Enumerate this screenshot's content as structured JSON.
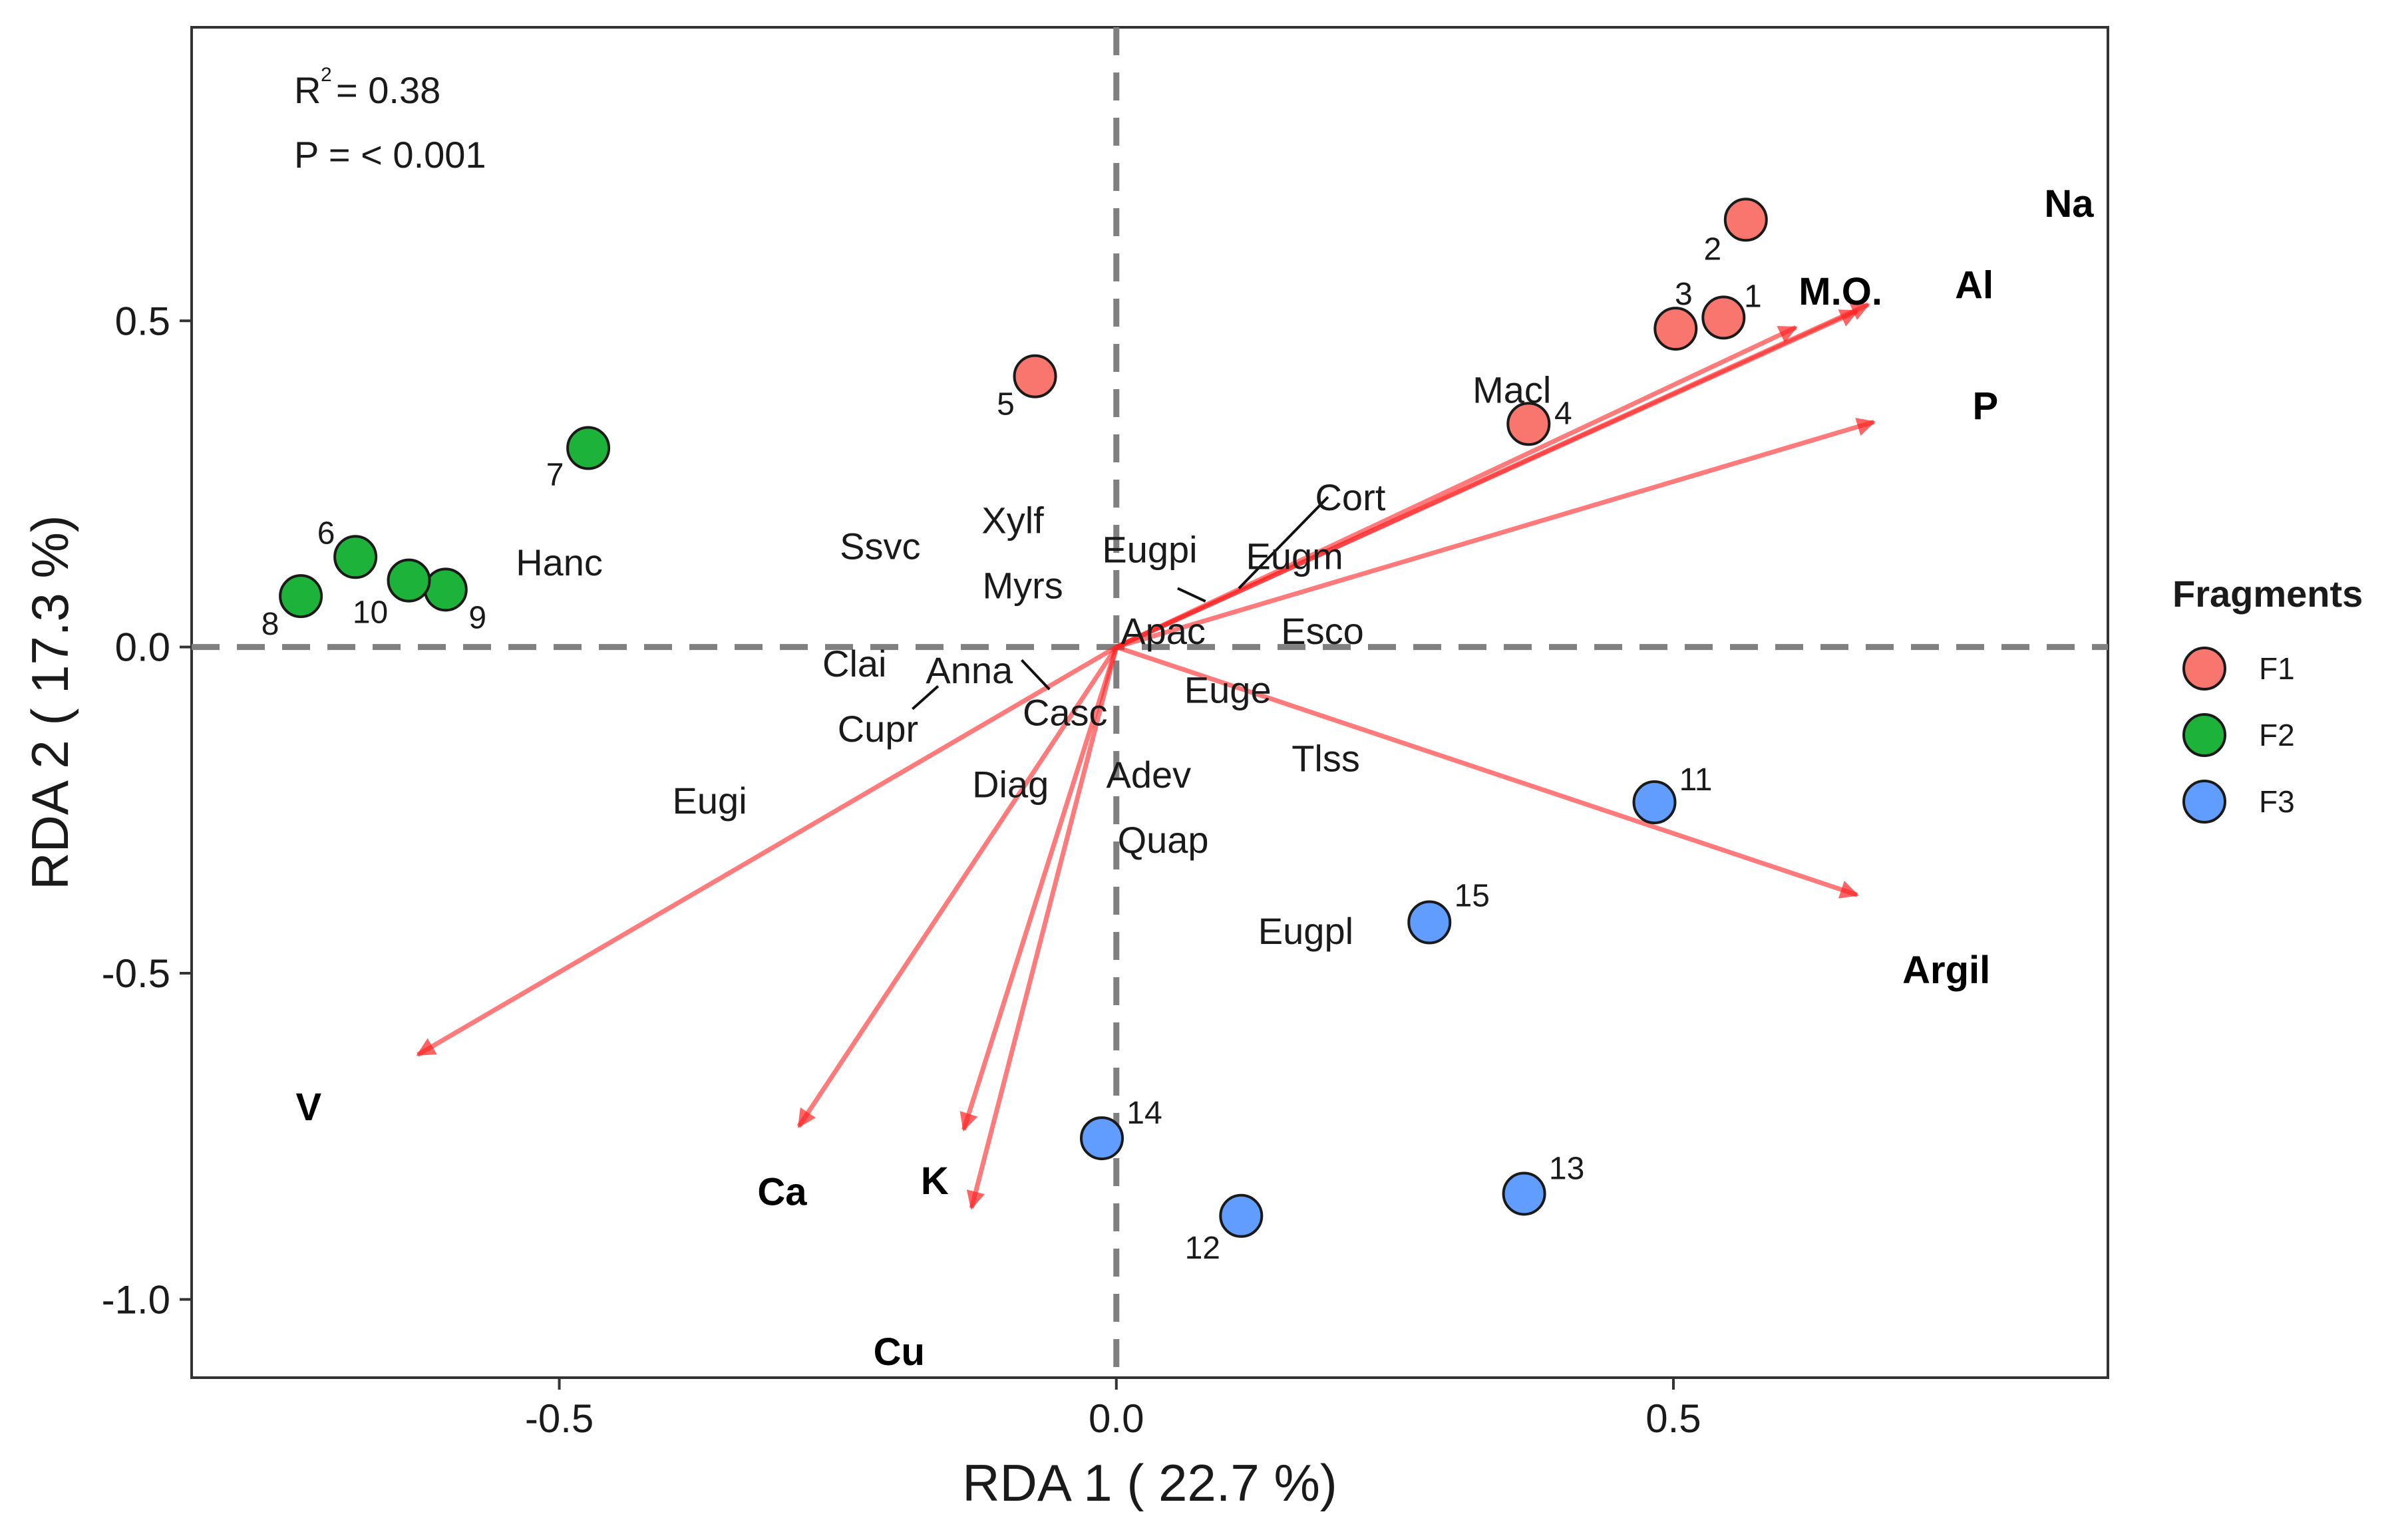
{
  "chart_data": {
    "type": "scatter",
    "subtype": "RDA biplot",
    "xlabel": "RDA 1 ( 22.7 %)",
    "ylabel": "RDA 2 ( 17.3 %)",
    "xlim": [
      -0.83,
      0.89
    ],
    "ylim": [
      -1.12,
      0.95
    ],
    "x_ticks": [
      -0.5,
      0.0,
      0.5
    ],
    "x_tick_labels": [
      "-0.5",
      "0.0",
      "0.5"
    ],
    "y_ticks": [
      -1.0,
      -0.5,
      0.0,
      0.5
    ],
    "y_tick_labels": [
      "-1.0",
      "-0.5",
      "0.0",
      "0.5"
    ],
    "reference_lines": {
      "x": 0,
      "y": 0,
      "style": "dashed",
      "color": "#808080"
    },
    "stats": {
      "r2": "= 0.38",
      "p": "P = < 0.001"
    },
    "legend": {
      "title": "Fragments",
      "position": "right",
      "entries": [
        {
          "name": "F1",
          "color": "#F8766D"
        },
        {
          "name": "F2",
          "color": "#1DB33A"
        },
        {
          "name": "F3",
          "color": "#619CFF"
        }
      ]
    },
    "sites": [
      {
        "label": "1",
        "fragment": "F1",
        "x": 0.545,
        "y": 0.505
      },
      {
        "label": "2",
        "fragment": "F1",
        "x": 0.565,
        "y": 0.655
      },
      {
        "label": "3",
        "fragment": "F1",
        "x": 0.502,
        "y": 0.488
      },
      {
        "label": "4",
        "fragment": "F1",
        "x": 0.37,
        "y": 0.342
      },
      {
        "label": "5",
        "fragment": "F1",
        "x": -0.073,
        "y": 0.415
      },
      {
        "label": "6",
        "fragment": "F2",
        "x": -0.683,
        "y": 0.138
      },
      {
        "label": "7",
        "fragment": "F2",
        "x": -0.474,
        "y": 0.305
      },
      {
        "label": "8",
        "fragment": "F2",
        "x": -0.732,
        "y": 0.078
      },
      {
        "label": "9",
        "fragment": "F2",
        "x": -0.602,
        "y": 0.088
      },
      {
        "label": "10",
        "fragment": "F2",
        "x": -0.635,
        "y": 0.102
      },
      {
        "label": "11",
        "fragment": "F3",
        "x": 0.483,
        "y": -0.238
      },
      {
        "label": "12",
        "fragment": "F3",
        "x": 0.112,
        "y": -0.872
      },
      {
        "label": "13",
        "fragment": "F3",
        "x": 0.366,
        "y": -0.838
      },
      {
        "label": "14",
        "fragment": "F3",
        "x": -0.013,
        "y": -0.753
      },
      {
        "label": "15",
        "fragment": "F3",
        "x": 0.281,
        "y": -0.422
      }
    ],
    "env_vectors": [
      {
        "name": "Na",
        "x": 0.675,
        "y": 0.525
      },
      {
        "name": "Al",
        "x": 0.665,
        "y": 0.515
      },
      {
        "name": "M.O.",
        "x": 0.61,
        "y": 0.49
      },
      {
        "name": "P",
        "x": 0.68,
        "y": 0.345
      },
      {
        "name": "Argil",
        "x": 0.665,
        "y": -0.38
      },
      {
        "name": "V",
        "x": -0.627,
        "y": -0.625
      },
      {
        "name": "Ca",
        "x": -0.285,
        "y": -0.735
      },
      {
        "name": "K",
        "x": -0.137,
        "y": -0.74
      },
      {
        "name": "Cu",
        "x": -0.13,
        "y": -0.86
      }
    ],
    "env_labels": [
      {
        "name": "Na",
        "x": 0.855,
        "y": 0.68
      },
      {
        "name": "Al",
        "x": 0.77,
        "y": 0.555
      },
      {
        "name": "M.O.",
        "x": 0.65,
        "y": 0.545
      },
      {
        "name": "P",
        "x": 0.78,
        "y": 0.37
      },
      {
        "name": "Argil",
        "x": 0.745,
        "y": -0.495
      },
      {
        "name": "V",
        "x": -0.725,
        "y": -0.705
      },
      {
        "name": "Ca",
        "x": -0.3,
        "y": -0.835
      },
      {
        "name": "K",
        "x": -0.163,
        "y": -0.818
      },
      {
        "name": "Cu",
        "x": -0.195,
        "y": -1.08
      }
    ],
    "species": [
      {
        "name": "Macl",
        "x": 0.355,
        "y": 0.395
      },
      {
        "name": "Cort",
        "x": 0.21,
        "y": 0.23
      },
      {
        "name": "Eugpi",
        "x": 0.03,
        "y": 0.15
      },
      {
        "name": "Eugm",
        "x": 0.16,
        "y": 0.14
      },
      {
        "name": "Xylf",
        "x": -0.093,
        "y": 0.195
      },
      {
        "name": "Ssvc",
        "x": -0.212,
        "y": 0.155
      },
      {
        "name": "Myrs",
        "x": -0.084,
        "y": 0.095
      },
      {
        "name": "Hanc",
        "x": -0.5,
        "y": 0.13
      },
      {
        "name": "Apac",
        "x": 0.042,
        "y": 0.025
      },
      {
        "name": "Esco",
        "x": 0.185,
        "y": 0.025
      },
      {
        "name": "Clai",
        "x": -0.235,
        "y": -0.025
      },
      {
        "name": "Anna",
        "x": -0.132,
        "y": -0.035
      },
      {
        "name": "Casc",
        "x": -0.046,
        "y": -0.1
      },
      {
        "name": "Euge",
        "x": 0.1,
        "y": -0.065
      },
      {
        "name": "Cupr",
        "x": -0.214,
        "y": -0.125
      },
      {
        "name": "Tlss",
        "x": 0.188,
        "y": -0.17
      },
      {
        "name": "Adev",
        "x": 0.029,
        "y": -0.195
      },
      {
        "name": "Diag",
        "x": -0.095,
        "y": -0.21
      },
      {
        "name": "Eugi",
        "x": -0.365,
        "y": -0.235
      },
      {
        "name": "Quap",
        "x": 0.042,
        "y": -0.295
      },
      {
        "name": "Eugpl",
        "x": 0.17,
        "y": -0.435
      }
    ],
    "species_connectors": [
      {
        "name": "Cort",
        "from": [
          0.11,
          0.09
        ],
        "to": [
          0.19,
          0.23
        ]
      },
      {
        "name": "Eugpi",
        "from": [
          0.055,
          0.09
        ],
        "to": [
          0.08,
          0.07
        ]
      },
      {
        "name": "Clai",
        "from": [
          -0.183,
          -0.095
        ],
        "to": [
          -0.16,
          -0.06
        ]
      },
      {
        "name": "Anna",
        "from": [
          -0.085,
          -0.02
        ],
        "to": [
          -0.06,
          -0.065
        ]
      }
    ]
  }
}
